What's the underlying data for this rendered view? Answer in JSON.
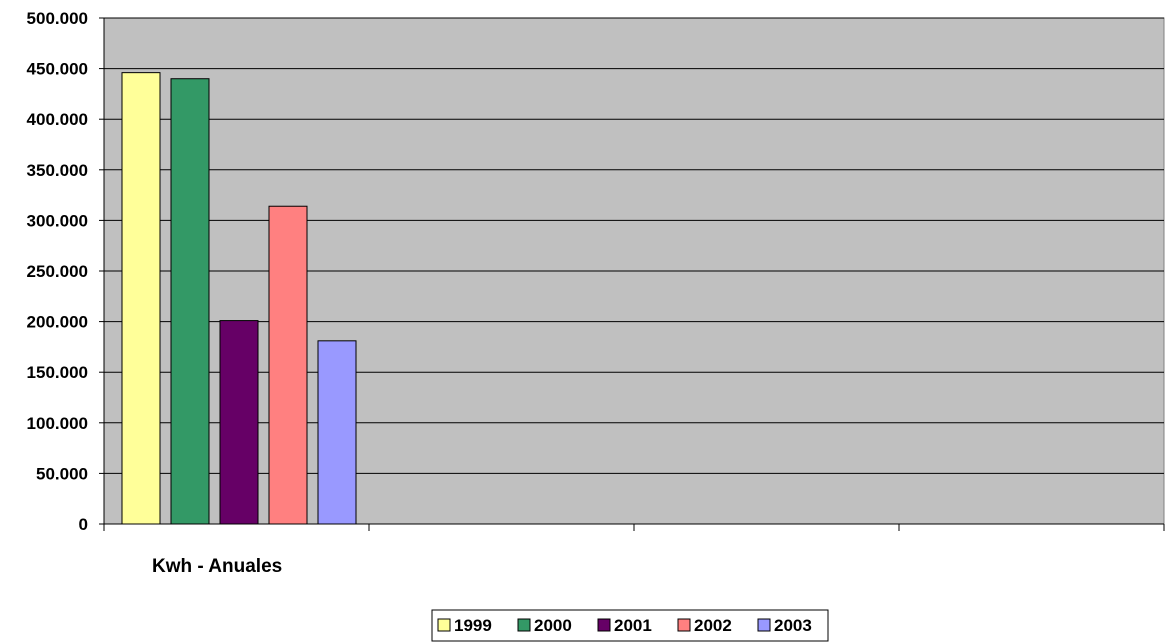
{
  "chart_data": {
    "type": "bar",
    "categories": [
      "Kwh - Anuales"
    ],
    "series": [
      {
        "name": "1999",
        "values": [
          446000
        ],
        "color": "#FFFF99"
      },
      {
        "name": "2000",
        "values": [
          440000
        ],
        "color": "#339966"
      },
      {
        "name": "2001",
        "values": [
          201000
        ],
        "color": "#660066"
      },
      {
        "name": "2002",
        "values": [
          314000
        ],
        "color": "#FF8080"
      },
      {
        "name": "2003",
        "values": [
          181000
        ],
        "color": "#9999FF"
      }
    ],
    "title": "",
    "xlabel": "",
    "ylabel": "",
    "ylim": [
      0,
      500000
    ],
    "y_ticks": [
      "0",
      "50.000",
      "100.000",
      "150.000",
      "200.000",
      "250.000",
      "300.000",
      "350.000",
      "400.000",
      "450.000",
      "500.000"
    ],
    "grid": true,
    "plot_background": "#C0C0C0",
    "legend_position": "bottom"
  }
}
